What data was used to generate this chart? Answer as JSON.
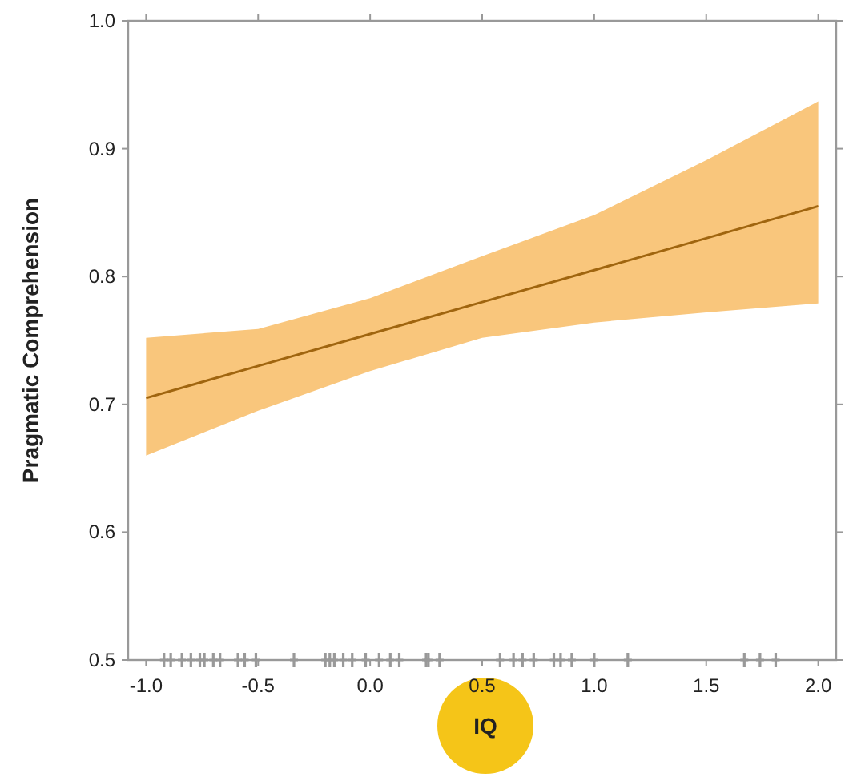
{
  "chart_data": {
    "type": "line",
    "xlabel": "IQ",
    "ylabel": "Pragmatic Comprehension",
    "xlim": [
      -1.08,
      2.08
    ],
    "ylim": [
      0.5,
      1.0
    ],
    "xticks": [
      {
        "value": -1,
        "label": "-1.0"
      },
      {
        "value": -0.5,
        "label": "-0.5"
      },
      {
        "value": 0,
        "label": "0.0"
      },
      {
        "value": 0.5,
        "label": "0.5"
      },
      {
        "value": 1,
        "label": "1.0"
      },
      {
        "value": 1.5,
        "label": "1.5"
      },
      {
        "value": 2,
        "label": "2.0"
      }
    ],
    "yticks": [
      {
        "value": 0.5,
        "label": "0.5"
      },
      {
        "value": 0.6,
        "label": "0.6"
      },
      {
        "value": 0.7,
        "label": "0.7"
      },
      {
        "value": 0.8,
        "label": "0.8"
      },
      {
        "value": 0.9,
        "label": "0.9"
      },
      {
        "value": 1,
        "label": "1.0"
      }
    ],
    "grid": false,
    "marker": "none",
    "line_style": "solid",
    "series": [
      {
        "color": "#a0650f",
        "x": [
          -1,
          -0.5,
          0,
          0.5,
          1,
          1.5,
          2
        ],
        "values": [
          0.705,
          0.73,
          0.755,
          0.78,
          0.805,
          0.83,
          0.855
        ],
        "lower": [
          0.66,
          0.695,
          0.726,
          0.752,
          0.764,
          0.772,
          0.779
        ],
        "upper": [
          0.752,
          0.759,
          0.783,
          0.816,
          0.848,
          0.891,
          0.937
        ]
      },
      {
        "type": "scatter",
        "marker": "cross",
        "color": "#999999",
        "x": [
          -0.92,
          -0.89,
          -0.84,
          -0.8,
          -0.76,
          -0.74,
          -0.7,
          -0.67,
          -0.59,
          -0.56,
          -0.51,
          -0.34,
          -0.2,
          -0.18,
          -0.16,
          -0.12,
          -0.08,
          -0.02,
          0.04,
          0.09,
          0.13,
          0.25,
          0.26,
          0.31,
          0.58,
          0.64,
          0.68,
          0.73,
          0.82,
          0.85,
          0.9,
          1.0,
          1.15,
          1.67,
          1.74,
          1.81
        ],
        "values": [
          0.5,
          0.5,
          0.5,
          0.5,
          0.5,
          0.5,
          0.5,
          0.5,
          0.5,
          0.5,
          0.5,
          0.5,
          0.5,
          0.5,
          0.5,
          0.5,
          0.5,
          0.5,
          0.5,
          0.5,
          0.5,
          0.5,
          0.5,
          0.5,
          0.5,
          0.5,
          0.5,
          0.5,
          0.5,
          0.5,
          0.5,
          0.5,
          0.5,
          0.5,
          0.5,
          0.5
        ]
      }
    ]
  }
}
